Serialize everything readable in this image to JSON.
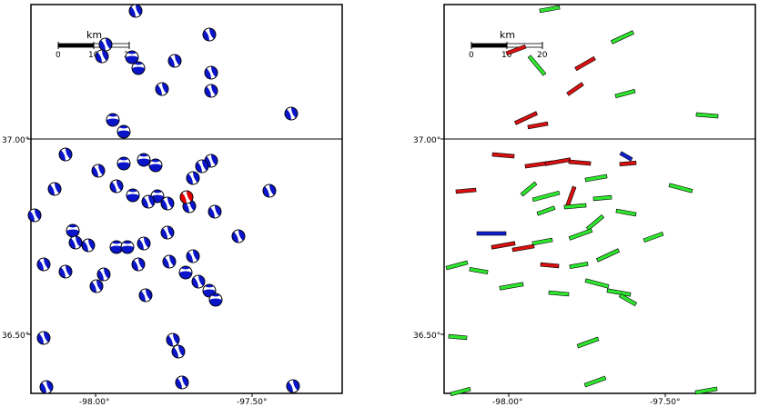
{
  "maps": [
    {
      "id": "left",
      "kind": "focal-mechanisms"
    },
    {
      "id": "right",
      "kind": "fault-planes"
    }
  ],
  "axes": {
    "x_ticks": [
      "-98.00°",
      "-97.50°"
    ],
    "y_ticks": [
      "37.00°",
      "36.50°"
    ]
  },
  "scalebar": {
    "unit": "km",
    "ticks": [
      "0",
      "10",
      "20"
    ]
  },
  "colors": {
    "mechanism_fill": "#0a14c8",
    "highlight": "#e00000",
    "plane_green": "#2ee62e",
    "plane_red": "#d81010",
    "plane_blue": "#1020d0"
  },
  "left_beachballs": [
    [
      149,
      12,
      0
    ],
    [
      230,
      38,
      0
    ],
    [
      116,
      49,
      0
    ],
    [
      112,
      62,
      0
    ],
    [
      145,
      63,
      1
    ],
    [
      152,
      75,
      1
    ],
    [
      192,
      67,
      0
    ],
    [
      232,
      80,
      0
    ],
    [
      178,
      98,
      0
    ],
    [
      232,
      100,
      0
    ],
    [
      320,
      125,
      0
    ],
    [
      124,
      132,
      1
    ],
    [
      136,
      145,
      1
    ],
    [
      72,
      170,
      0
    ],
    [
      232,
      177,
      0
    ],
    [
      136,
      180,
      1
    ],
    [
      158,
      176,
      1
    ],
    [
      171,
      182,
      1
    ],
    [
      222,
      183,
      0
    ],
    [
      60,
      208,
      0
    ],
    [
      108,
      188,
      0
    ],
    [
      128,
      205,
      0
    ],
    [
      146,
      215,
      1
    ],
    [
      173,
      216,
      1
    ],
    [
      163,
      222,
      0
    ],
    [
      184,
      224,
      0
    ],
    [
      212,
      196,
      0
    ],
    [
      208,
      227,
      0
    ],
    [
      296,
      210,
      0
    ],
    [
      236,
      233,
      0
    ],
    [
      38,
      237,
      0
    ],
    [
      80,
      254,
      1
    ],
    [
      83,
      267,
      0
    ],
    [
      97,
      270,
      0
    ],
    [
      128,
      272,
      1
    ],
    [
      140,
      272,
      1
    ],
    [
      158,
      268,
      0
    ],
    [
      184,
      256,
      0
    ],
    [
      262,
      260,
      0
    ],
    [
      48,
      291,
      0
    ],
    [
      72,
      299,
      0
    ],
    [
      106,
      315,
      0
    ],
    [
      114,
      302,
      0
    ],
    [
      152,
      291,
      0
    ],
    [
      186,
      288,
      0
    ],
    [
      212,
      282,
      0
    ],
    [
      204,
      300,
      1
    ],
    [
      218,
      310,
      0
    ],
    [
      230,
      320,
      1
    ],
    [
      237,
      330,
      1
    ],
    [
      160,
      325,
      0
    ],
    [
      48,
      372,
      0
    ],
    [
      190,
      374,
      0
    ],
    [
      196,
      387,
      0
    ],
    [
      200,
      421,
      0
    ],
    [
      51,
      426,
      0
    ],
    [
      322,
      425,
      0
    ]
  ],
  "left_highlight": [
    [
      205,
      217
    ]
  ],
  "right_planes": [
    [
      604,
      10,
      22,
      -10,
      "g"
    ],
    [
      684,
      41,
      26,
      -25,
      "g"
    ],
    [
      567,
      55,
      22,
      -20,
      "r"
    ],
    [
      590,
      72,
      26,
      50,
      "g"
    ],
    [
      643,
      70,
      24,
      -30,
      "r"
    ],
    [
      632,
      98,
      20,
      -35,
      "r"
    ],
    [
      687,
      103,
      22,
      -15,
      "g"
    ],
    [
      578,
      130,
      26,
      -25,
      "r"
    ],
    [
      591,
      138,
      22,
      -10,
      "r"
    ],
    [
      777,
      127,
      24,
      5,
      "g"
    ],
    [
      553,
      171,
      24,
      5,
      "r"
    ],
    [
      592,
      181,
      30,
      -8,
      "r"
    ],
    [
      613,
      178,
      28,
      -10,
      "r"
    ],
    [
      637,
      179,
      24,
      5,
      "r"
    ],
    [
      690,
      180,
      18,
      -5,
      "r"
    ],
    [
      688,
      172,
      14,
      30,
      "b"
    ],
    [
      655,
      196,
      24,
      -10,
      "g"
    ],
    [
      581,
      208,
      20,
      -40,
      "g"
    ],
    [
      512,
      210,
      22,
      -5,
      "r"
    ],
    [
      600,
      216,
      30,
      -15,
      "g"
    ],
    [
      627,
      217,
      24,
      -70,
      "r"
    ],
    [
      662,
      218,
      20,
      -5,
      "g"
    ],
    [
      632,
      227,
      24,
      -5,
      "g"
    ],
    [
      600,
      232,
      20,
      -20,
      "g"
    ],
    [
      688,
      234,
      22,
      10,
      "g"
    ],
    [
      654,
      245,
      22,
      -40,
      "g"
    ],
    [
      748,
      207,
      26,
      15,
      "g"
    ],
    [
      540,
      257,
      32,
      0,
      "b"
    ],
    [
      575,
      273,
      24,
      -10,
      "r"
    ],
    [
      553,
      270,
      26,
      -10,
      "r"
    ],
    [
      596,
      266,
      22,
      -10,
      "g"
    ],
    [
      638,
      258,
      26,
      -20,
      "g"
    ],
    [
      718,
      261,
      22,
      -20,
      "g"
    ],
    [
      502,
      292,
      24,
      -15,
      "g"
    ],
    [
      526,
      298,
      20,
      10,
      "g"
    ],
    [
      604,
      292,
      20,
      5,
      "r"
    ],
    [
      636,
      292,
      20,
      -10,
      "g"
    ],
    [
      668,
      281,
      26,
      -25,
      "g"
    ],
    [
      562,
      315,
      26,
      -10,
      "g"
    ],
    [
      614,
      323,
      22,
      5,
      "g"
    ],
    [
      656,
      312,
      26,
      15,
      "g"
    ],
    [
      680,
      322,
      26,
      10,
      "g"
    ],
    [
      690,
      330,
      20,
      30,
      "g"
    ],
    [
      503,
      371,
      20,
      5,
      "g"
    ],
    [
      646,
      377,
      24,
      -20,
      "g"
    ],
    [
      506,
      431,
      22,
      -15,
      "g"
    ],
    [
      654,
      420,
      24,
      -20,
      "g"
    ],
    [
      776,
      430,
      24,
      -10,
      "g"
    ]
  ]
}
